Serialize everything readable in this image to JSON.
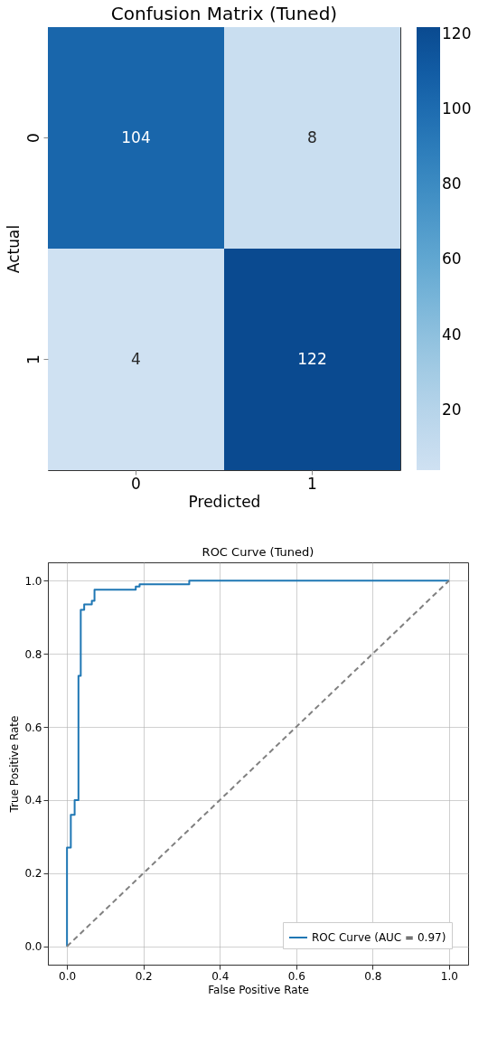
{
  "chart_data": [
    {
      "type": "heatmap",
      "title": "Confusion Matrix (Tuned)",
      "xlabel": "Predicted",
      "ylabel": "Actual",
      "categories": [
        "0",
        "1"
      ],
      "y_categories": [
        "0",
        "1"
      ],
      "cells": [
        [
          104,
          8
        ],
        [
          4,
          122
        ]
      ],
      "data_labels": true,
      "clim": [
        4,
        122
      ],
      "cticks": [
        20,
        40,
        60,
        80,
        100,
        120
      ]
    },
    {
      "type": "line",
      "title": "ROC Curve (Tuned)",
      "xlabel": "False Positive Rate",
      "ylabel": "True Positive Rate",
      "xlim": [
        -0.05,
        1.05
      ],
      "ylim": [
        -0.05,
        1.05
      ],
      "xticks": [
        {
          "value": 0,
          "label": "0.0"
        },
        {
          "value": 0.2,
          "label": "0.2"
        },
        {
          "value": 0.4,
          "label": "0.4"
        },
        {
          "value": 0.6,
          "label": "0.6"
        },
        {
          "value": 0.8,
          "label": "0.8"
        },
        {
          "value": 1,
          "label": "1.0"
        }
      ],
      "yticks": [
        {
          "value": 0,
          "label": "0.0"
        },
        {
          "value": 0.2,
          "label": "0.2"
        },
        {
          "value": 0.4,
          "label": "0.4"
        },
        {
          "value": 0.6,
          "label": "0.6"
        },
        {
          "value": 0.8,
          "label": "0.8"
        },
        {
          "value": 1,
          "label": "1.0"
        }
      ],
      "grid": true,
      "legend": "bottom right",
      "marker": "none",
      "series": [
        {
          "name": "ROC Curve (AUC = 0.97)",
          "color": "#1f77b4",
          "line_style": "solid",
          "x": [
            0,
            0,
            0.01,
            0.01,
            0.02,
            0.02,
            0.03,
            0.03,
            0.036,
            0.036,
            0.045,
            0.045,
            0.065,
            0.065,
            0.072,
            0.072,
            0.18,
            0.18,
            0.19,
            0.19,
            0.32,
            0.32,
            1
          ],
          "values": [
            0,
            0.27,
            0.27,
            0.36,
            0.36,
            0.4,
            0.4,
            0.74,
            0.74,
            0.92,
            0.92,
            0.935,
            0.935,
            0.945,
            0.945,
            0.975,
            0.975,
            0.984,
            0.984,
            0.99,
            0.99,
            1,
            1
          ]
        },
        {
          "color": "#808080",
          "line_style": "dashed",
          "x": [
            0,
            1
          ],
          "values": [
            0,
            1
          ]
        }
      ]
    }
  ]
}
